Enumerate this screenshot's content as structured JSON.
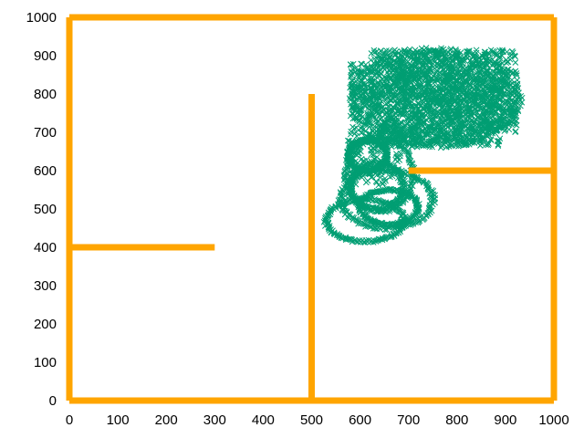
{
  "chart_data": {
    "type": "scatter",
    "title": "",
    "xlabel": "",
    "ylabel": "",
    "xlim": [
      0,
      1000
    ],
    "ylim": [
      0,
      1000
    ],
    "x_ticks": [
      "0",
      "100",
      "200",
      "300",
      "400",
      "500",
      "600",
      "700",
      "800",
      "900",
      "1000"
    ],
    "y_ticks": [
      "0",
      "100",
      "200",
      "300",
      "400",
      "500",
      "600",
      "700",
      "800",
      "900",
      "1000"
    ],
    "grid": false,
    "legend": "none",
    "colors": {
      "walls": "#ffa500",
      "trajectory": "#009e73"
    },
    "walls": [
      {
        "x": [
          0,
          1000
        ],
        "y": [
          0,
          0
        ]
      },
      {
        "x": [
          1000,
          1000
        ],
        "y": [
          0,
          1000
        ]
      },
      {
        "x": [
          1000,
          0
        ],
        "y": [
          1000,
          1000
        ]
      },
      {
        "x": [
          0,
          0
        ],
        "y": [
          1000,
          0
        ]
      },
      {
        "x": [
          0,
          300
        ],
        "y": [
          400,
          400
        ]
      },
      {
        "x": [
          500,
          500
        ],
        "y": [
          0,
          800
        ]
      },
      {
        "x": [
          700,
          1000
        ],
        "y": [
          600,
          600
        ]
      }
    ],
    "trajectory": {
      "marker": "x",
      "regions": [
        {
          "shape": "blob",
          "x_range": [
            575,
            935
          ],
          "y_range": [
            655,
            920
          ],
          "center": [
            755,
            790
          ]
        },
        {
          "shape": "loops",
          "x_range": [
            540,
            750
          ],
          "y_range": [
            390,
            680
          ],
          "center": [
            640,
            540
          ]
        }
      ]
    }
  }
}
